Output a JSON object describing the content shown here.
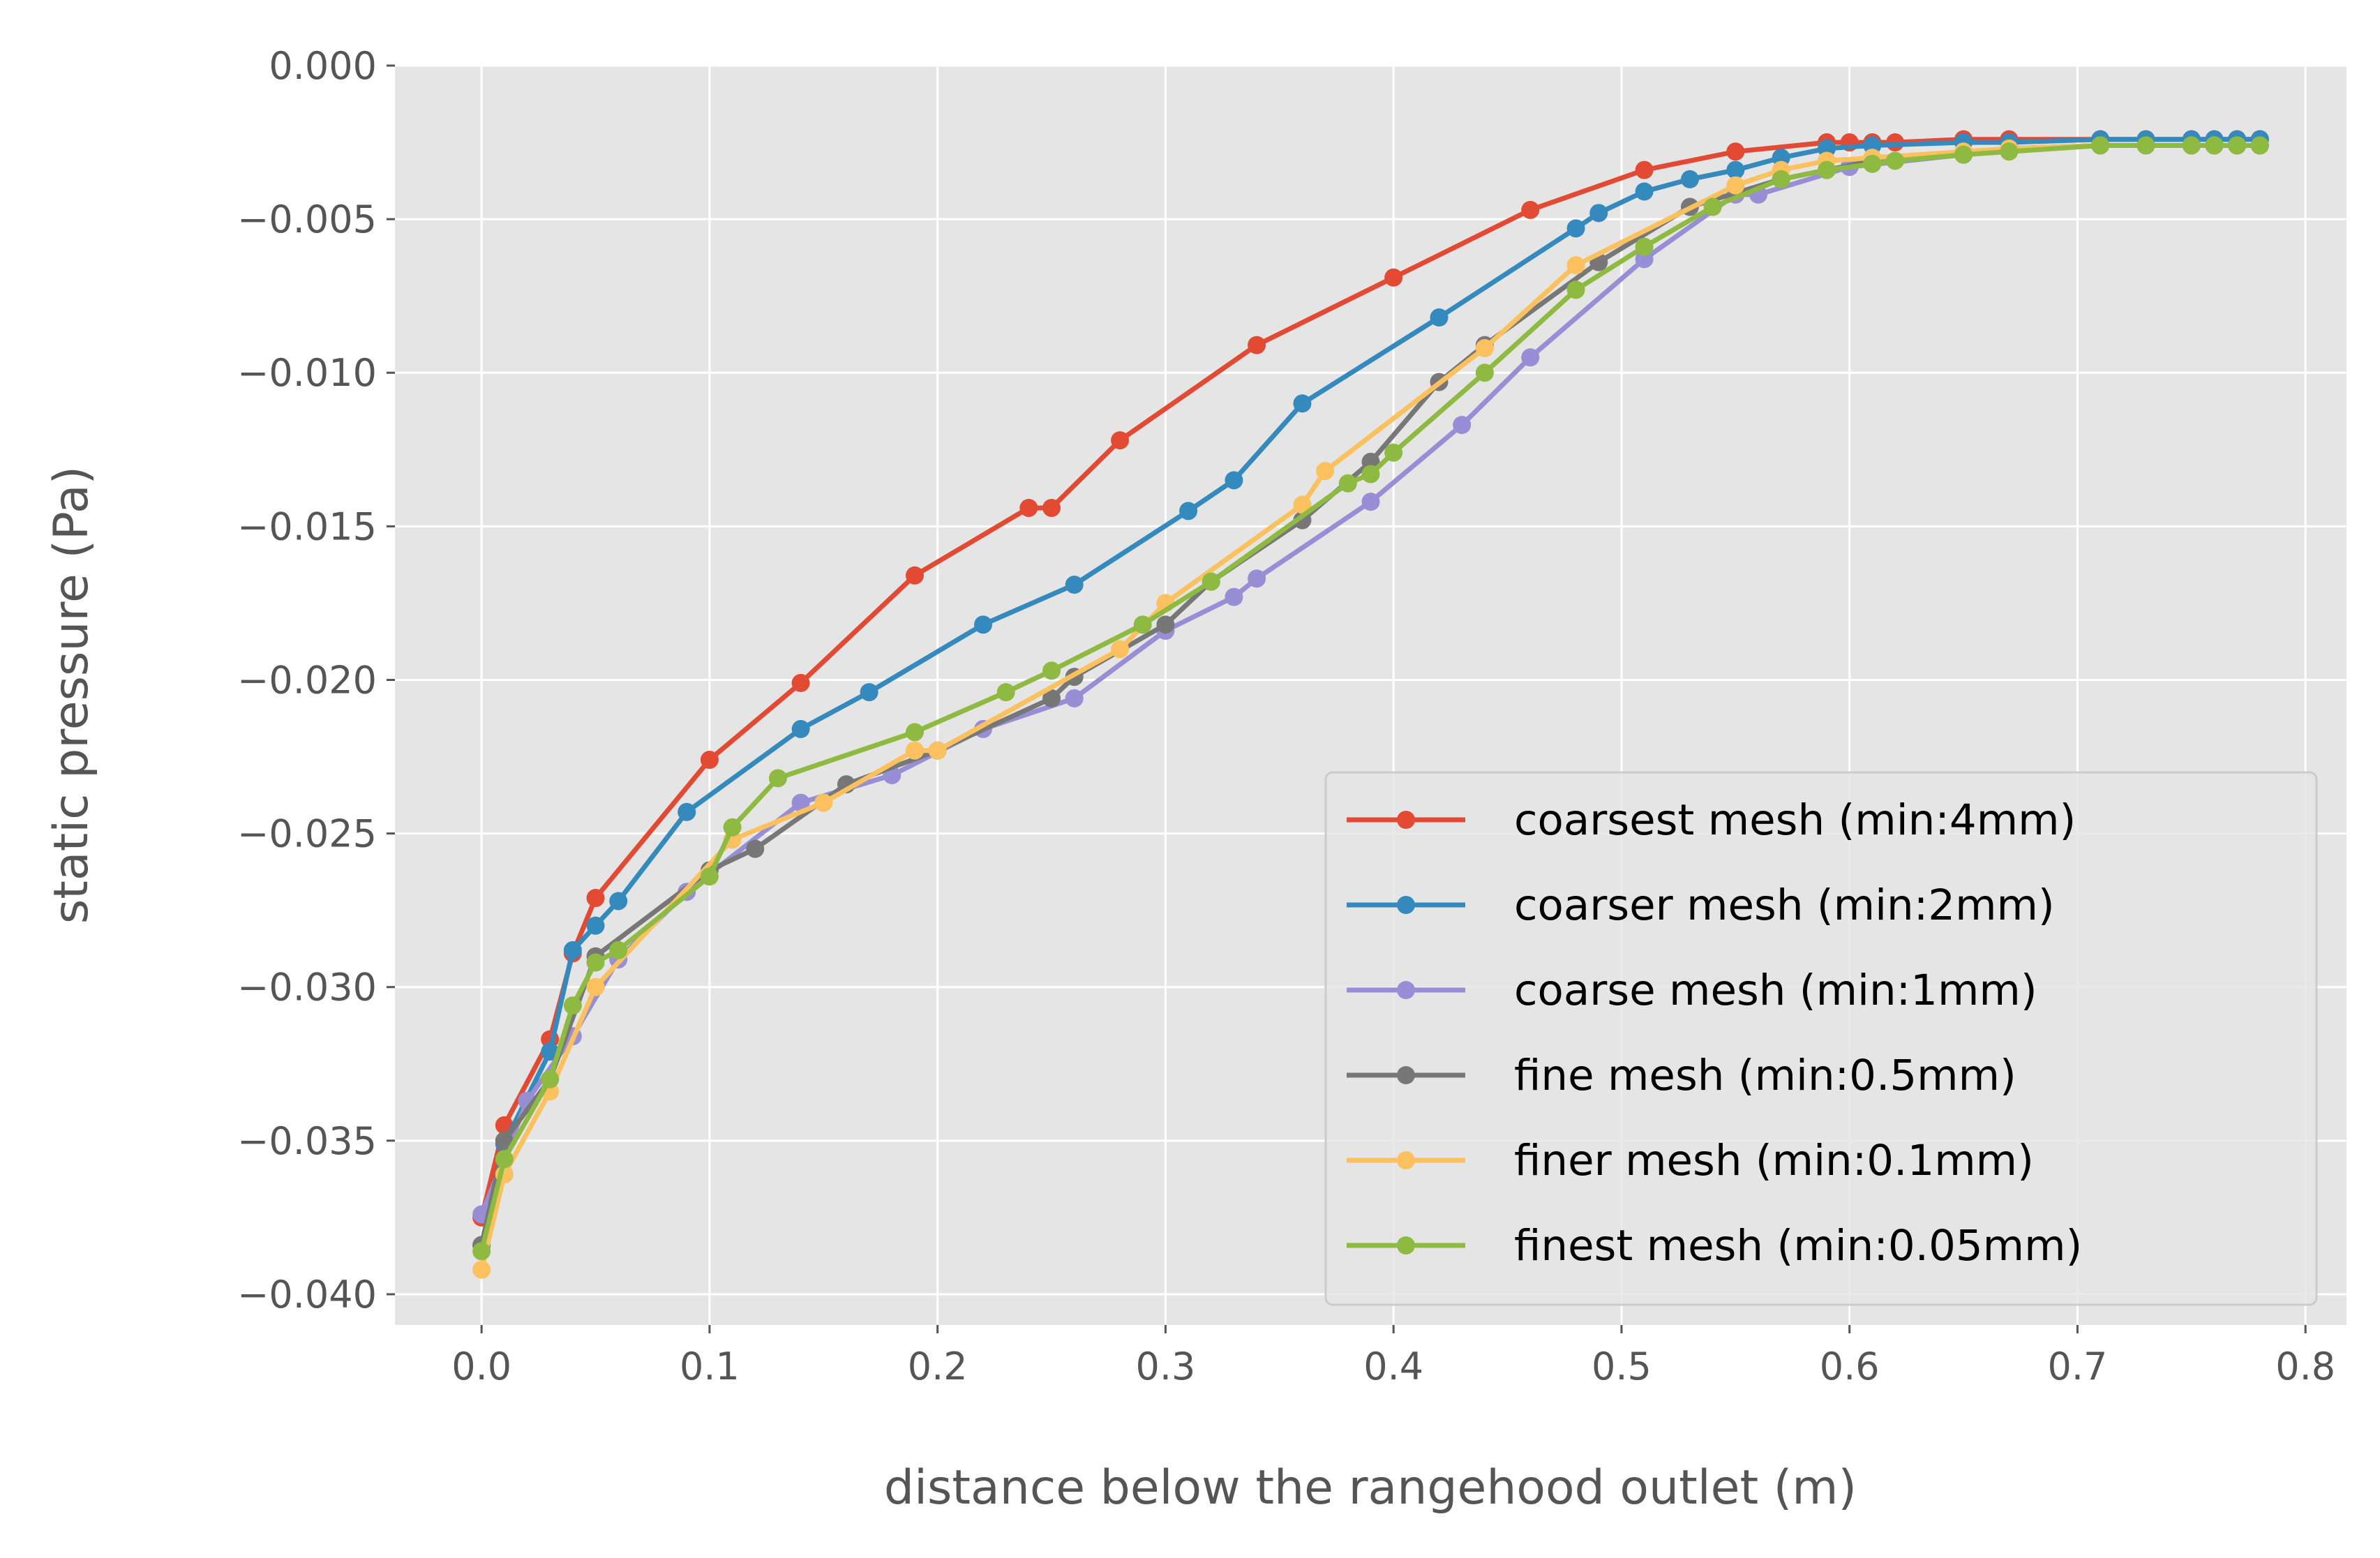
{
  "chart_data": {
    "type": "line",
    "title": "",
    "xlabel": "distance below the rangehood outlet (m)",
    "ylabel": "static pressure (Pa)",
    "xlim": [
      -0.038,
      0.818
    ],
    "ylim": [
      -0.041,
      0.0
    ],
    "xticks": [
      0.0,
      0.1,
      0.2,
      0.3,
      0.4,
      0.5,
      0.6,
      0.7,
      0.8
    ],
    "xtick_labels": [
      "0.0",
      "0.1",
      "0.2",
      "0.3",
      "0.4",
      "0.5",
      "0.6",
      "0.7",
      "0.8"
    ],
    "yticks": [
      0.0,
      -0.005,
      -0.01,
      -0.015,
      -0.02,
      -0.025,
      -0.03,
      -0.035,
      -0.04
    ],
    "ytick_labels": [
      "0.000",
      "−0.005",
      "−0.010",
      "−0.015",
      "−0.020",
      "−0.025",
      "−0.030",
      "−0.035",
      "−0.040"
    ],
    "grid": true,
    "legend_position": "lower-right",
    "background": "#e5e5e5",
    "series": [
      {
        "name": "coarsest mesh (min:4mm)",
        "color": "#E24A33",
        "x": [
          0.0,
          0.01,
          0.03,
          0.04,
          0.05,
          0.1,
          0.14,
          0.19,
          0.24,
          0.25,
          0.28,
          0.34,
          0.4,
          0.46,
          0.51,
          0.55,
          0.59,
          0.6,
          0.61,
          0.62,
          0.65,
          0.67,
          0.71,
          0.73,
          0.75,
          0.76,
          0.77,
          0.78
        ],
        "y": [
          -0.0375,
          -0.0345,
          -0.0317,
          -0.0289,
          -0.0271,
          -0.0226,
          -0.0201,
          -0.0166,
          -0.0144,
          -0.0144,
          -0.0122,
          -0.0091,
          -0.0069,
          -0.0047,
          -0.0034,
          -0.0028,
          -0.0025,
          -0.0025,
          -0.0025,
          -0.0025,
          -0.0024,
          -0.0024,
          -0.0024,
          -0.0024,
          -0.0024,
          -0.0024,
          -0.0024,
          -0.0024
        ]
      },
      {
        "name": "coarser mesh (min:2mm)",
        "color": "#348ABD",
        "x": [
          0.0,
          0.01,
          0.03,
          0.04,
          0.05,
          0.06,
          0.09,
          0.14,
          0.17,
          0.22,
          0.26,
          0.31,
          0.33,
          0.36,
          0.42,
          0.48,
          0.49,
          0.51,
          0.53,
          0.55,
          0.57,
          0.59,
          0.61,
          0.65,
          0.67,
          0.71,
          0.73,
          0.75,
          0.76,
          0.77,
          0.78
        ],
        "y": [
          -0.0384,
          -0.0351,
          -0.0321,
          -0.0288,
          -0.028,
          -0.0272,
          -0.0243,
          -0.0216,
          -0.0204,
          -0.0182,
          -0.0169,
          -0.0145,
          -0.0135,
          -0.011,
          -0.0082,
          -0.0053,
          -0.0048,
          -0.0041,
          -0.0037,
          -0.0034,
          -0.003,
          -0.0027,
          -0.0026,
          -0.0025,
          -0.0025,
          -0.0024,
          -0.0024,
          -0.0024,
          -0.0024,
          -0.0024,
          -0.0024
        ]
      },
      {
        "name": "coarse mesh (min:1mm)",
        "color": "#988ED5",
        "x": [
          0.0,
          0.02,
          0.04,
          0.06,
          0.09,
          0.14,
          0.18,
          0.22,
          0.26,
          0.3,
          0.33,
          0.34,
          0.39,
          0.43,
          0.46,
          0.51,
          0.55,
          0.56,
          0.6,
          0.65,
          0.67,
          0.71,
          0.73,
          0.75,
          0.76,
          0.77,
          0.78
        ],
        "y": [
          -0.0374,
          -0.0337,
          -0.0316,
          -0.0291,
          -0.0269,
          -0.024,
          -0.0231,
          -0.0216,
          -0.0206,
          -0.0184,
          -0.0173,
          -0.0167,
          -0.0142,
          -0.0117,
          -0.0095,
          -0.0063,
          -0.0042,
          -0.0042,
          -0.0033,
          -0.0029,
          -0.0027,
          -0.0026,
          -0.0026,
          -0.0026,
          -0.0026,
          -0.0026,
          -0.0026
        ]
      },
      {
        "name": "fine mesh (min:0.5mm)",
        "color": "#777777",
        "x": [
          0.0,
          0.01,
          0.03,
          0.05,
          0.1,
          0.12,
          0.16,
          0.2,
          0.25,
          0.26,
          0.3,
          0.32,
          0.36,
          0.39,
          0.42,
          0.44,
          0.49,
          0.53,
          0.57,
          0.61,
          0.65,
          0.67,
          0.71,
          0.73,
          0.75,
          0.76,
          0.77,
          0.78
        ],
        "y": [
          -0.0384,
          -0.035,
          -0.033,
          -0.029,
          -0.0262,
          -0.0255,
          -0.0234,
          -0.0223,
          -0.0206,
          -0.0199,
          -0.0182,
          -0.0168,
          -0.0148,
          -0.0129,
          -0.0103,
          -0.0091,
          -0.0064,
          -0.0046,
          -0.0037,
          -0.0031,
          -0.0029,
          -0.0027,
          -0.0026,
          -0.0026,
          -0.0026,
          -0.0026,
          -0.0026,
          -0.0026
        ]
      },
      {
        "name": "finer mesh (min:0.1mm)",
        "color": "#FBC15E",
        "x": [
          0.0,
          0.01,
          0.03,
          0.05,
          0.11,
          0.15,
          0.19,
          0.2,
          0.28,
          0.3,
          0.36,
          0.37,
          0.44,
          0.48,
          0.55,
          0.57,
          0.59,
          0.61,
          0.65,
          0.67,
          0.71,
          0.73,
          0.75,
          0.76,
          0.77,
          0.78
        ],
        "y": [
          -0.0392,
          -0.0361,
          -0.0334,
          -0.03,
          -0.0252,
          -0.024,
          -0.0223,
          -0.0223,
          -0.019,
          -0.0175,
          -0.0143,
          -0.0132,
          -0.0092,
          -0.0065,
          -0.0039,
          -0.0034,
          -0.0031,
          -0.003,
          -0.0028,
          -0.0027,
          -0.0026,
          -0.0026,
          -0.0026,
          -0.0026,
          -0.0026,
          -0.0026
        ]
      },
      {
        "name": "finest mesh (min:0.05mm)",
        "color": "#8EBA42",
        "x": [
          0.0,
          0.01,
          0.03,
          0.04,
          0.05,
          0.06,
          0.1,
          0.11,
          0.13,
          0.19,
          0.23,
          0.25,
          0.29,
          0.32,
          0.38,
          0.39,
          0.4,
          0.44,
          0.48,
          0.51,
          0.54,
          0.57,
          0.59,
          0.61,
          0.62,
          0.65,
          0.67,
          0.71,
          0.73,
          0.75,
          0.76,
          0.77,
          0.78
        ],
        "y": [
          -0.0386,
          -0.0356,
          -0.033,
          -0.0306,
          -0.0292,
          -0.0288,
          -0.0264,
          -0.0248,
          -0.0232,
          -0.0217,
          -0.0204,
          -0.0197,
          -0.0182,
          -0.0168,
          -0.0136,
          -0.0133,
          -0.0126,
          -0.01,
          -0.0073,
          -0.0059,
          -0.0046,
          -0.0037,
          -0.0034,
          -0.0032,
          -0.0031,
          -0.0029,
          -0.0028,
          -0.0026,
          -0.0026,
          -0.0026,
          -0.0026,
          -0.0026,
          -0.0026
        ]
      }
    ]
  }
}
